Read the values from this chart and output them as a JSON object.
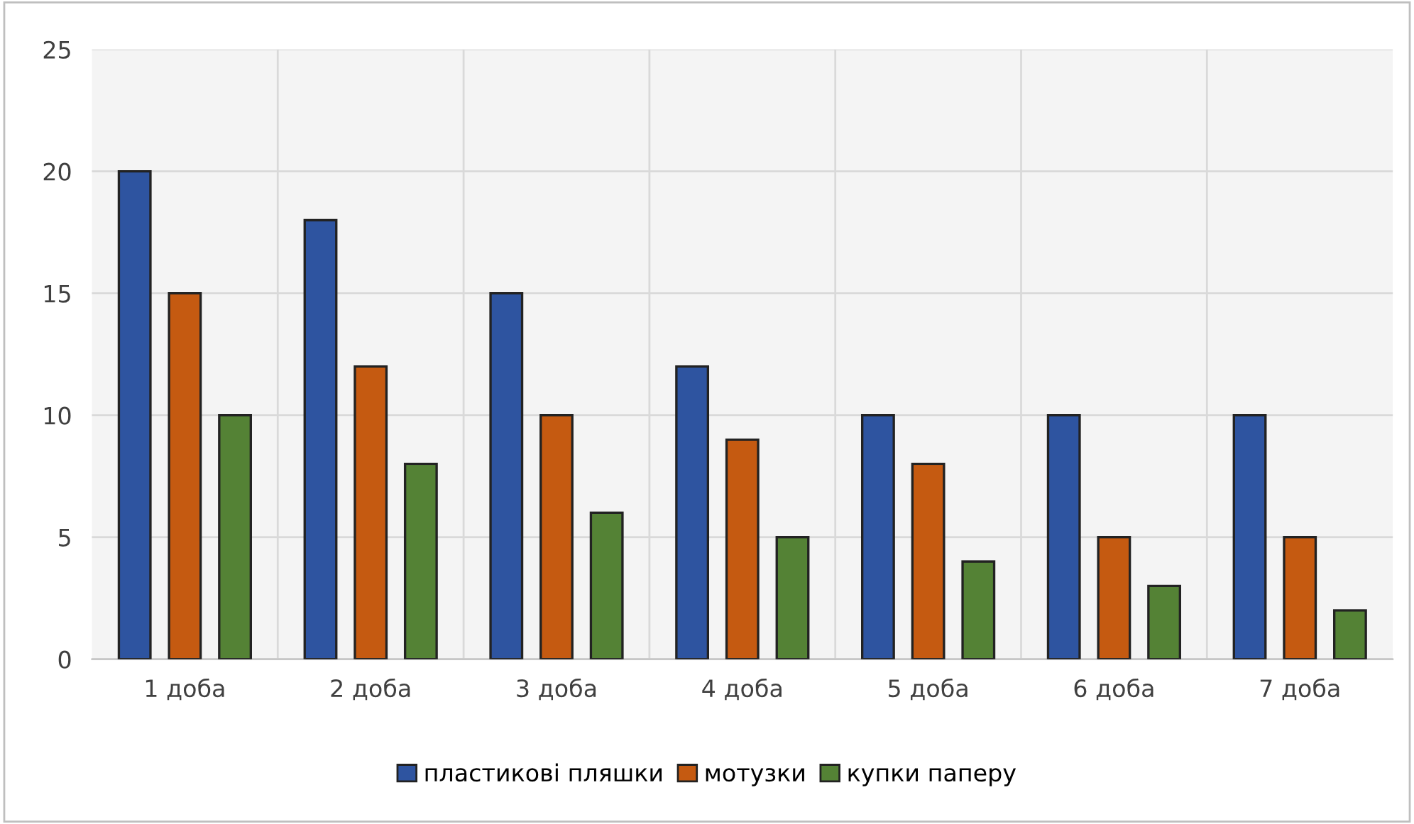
{
  "chart_data": {
    "type": "bar",
    "categories": [
      "1 доба",
      "2 доба",
      "3 доба",
      "4 доба",
      "5 доба",
      "6 доба",
      "7 доба"
    ],
    "series": [
      {
        "name": "пластикові пляшки",
        "color": "#2e54a0",
        "values": [
          20,
          18,
          15,
          12,
          10,
          10,
          10
        ]
      },
      {
        "name": "мотузки",
        "color": "#c55a11",
        "values": [
          15,
          12,
          10,
          9,
          8,
          5,
          5
        ]
      },
      {
        "name": "купки паперу",
        "color": "#548235",
        "values": [
          10,
          8,
          6,
          5,
          4,
          3,
          2
        ]
      }
    ],
    "ylim": [
      0,
      25
    ],
    "yticks": [
      0,
      5,
      10,
      15,
      20,
      25
    ],
    "grid": true,
    "legend": "bottom"
  }
}
